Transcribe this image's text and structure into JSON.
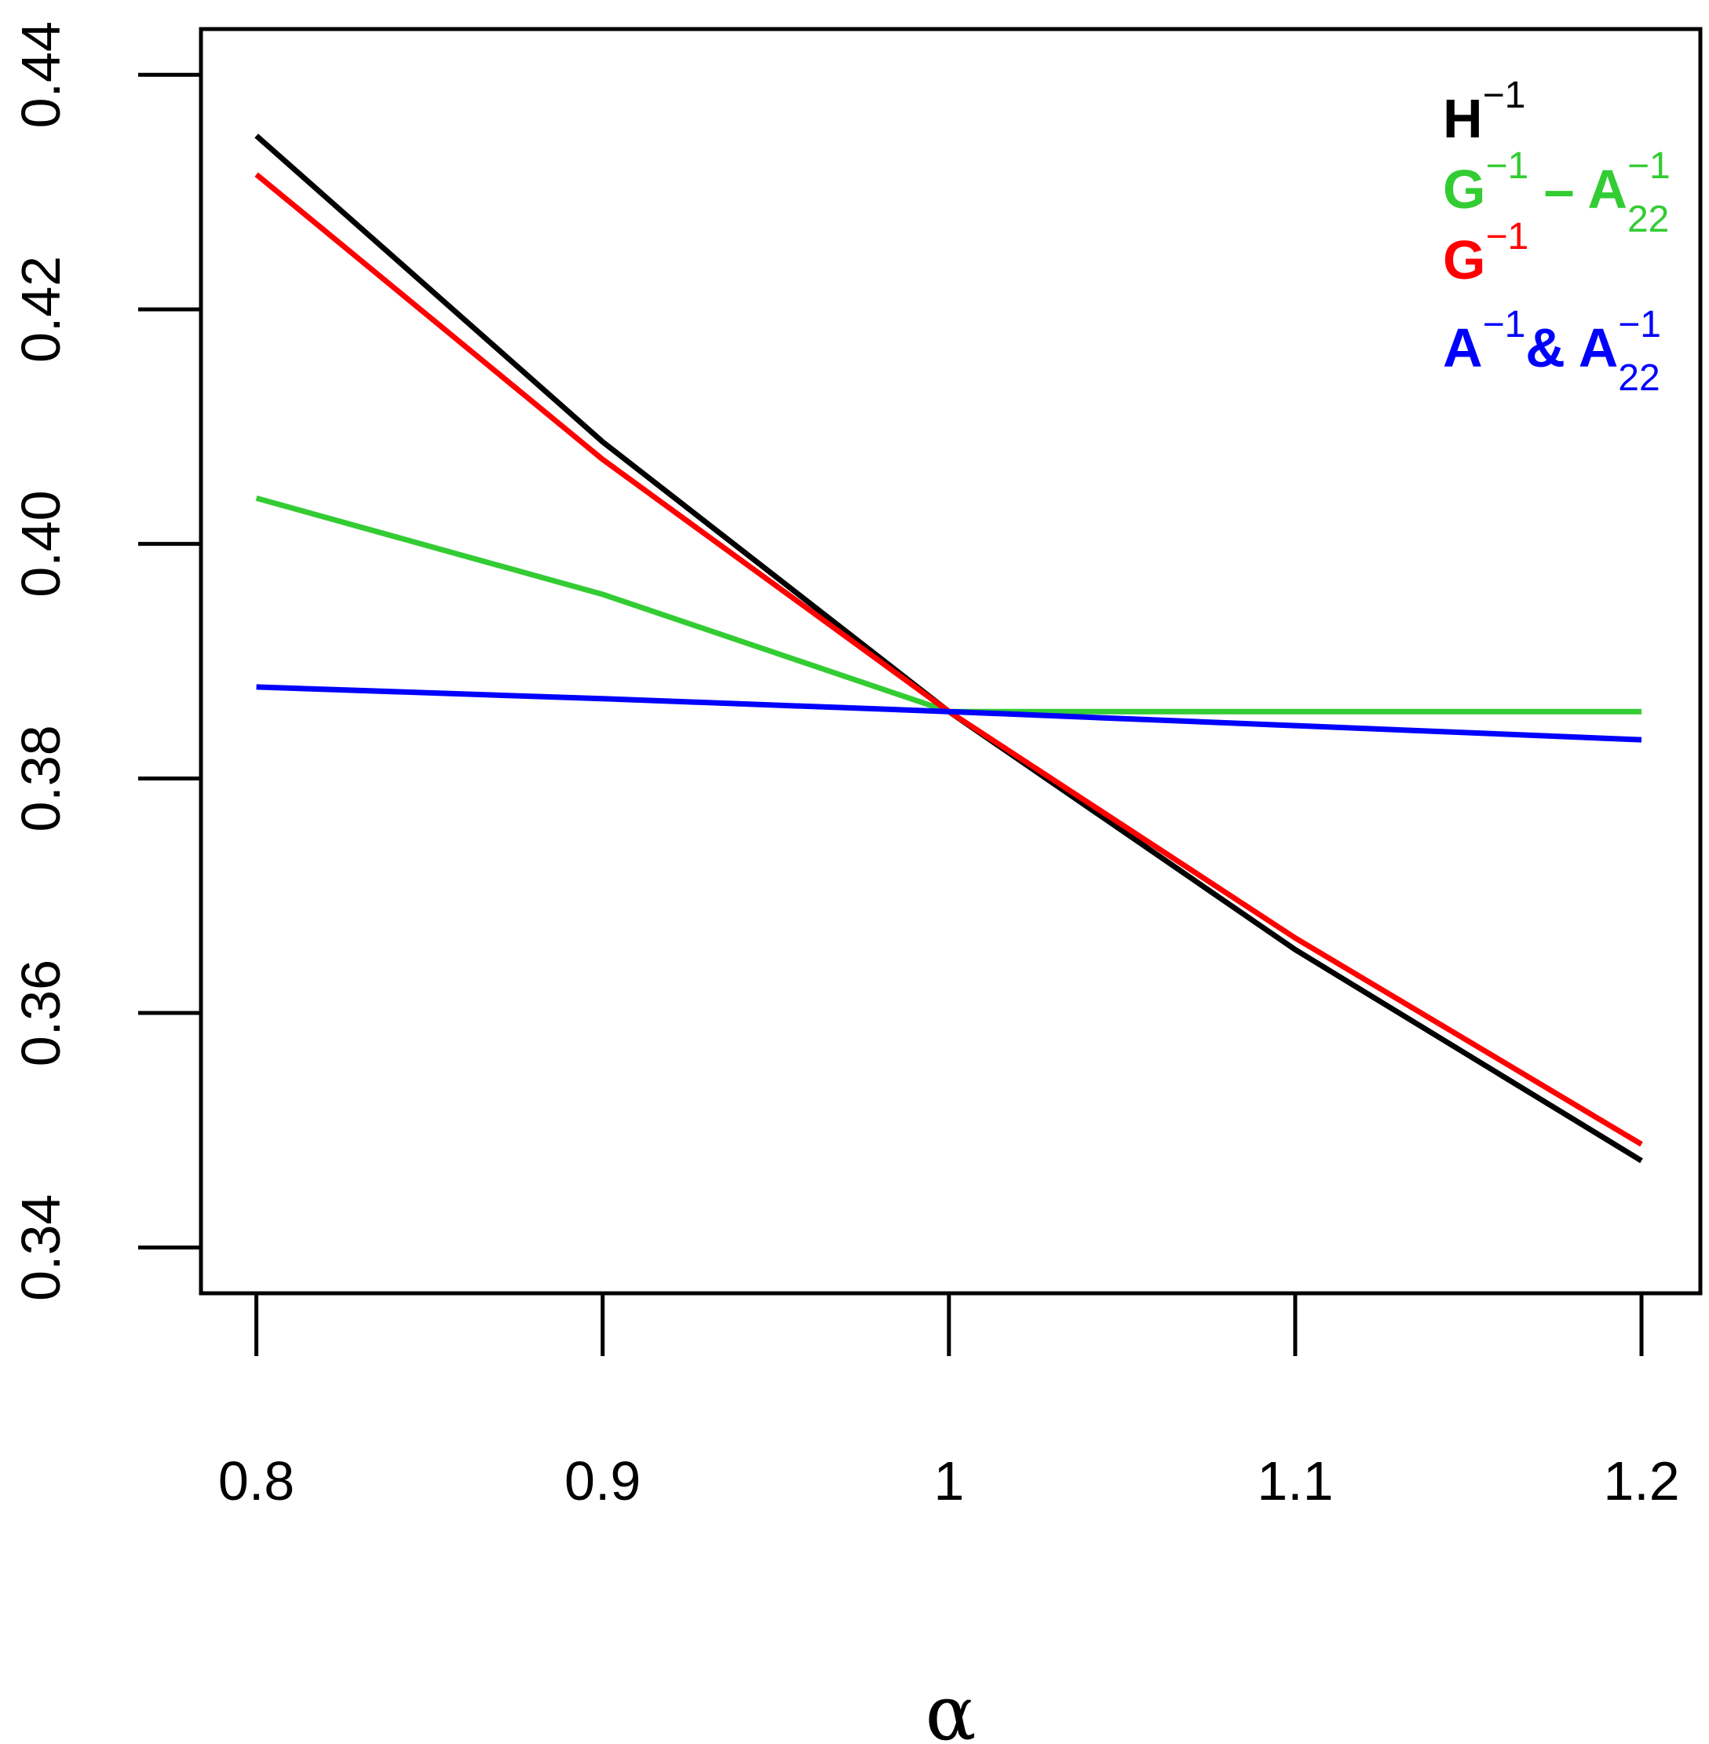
{
  "chart_data": {
    "type": "line",
    "title": "",
    "xlabel": "α",
    "ylabel": "",
    "x": [
      0.8,
      0.9,
      1.0,
      1.1,
      1.2
    ],
    "xlim": [
      0.784,
      1.217
    ],
    "ylim": [
      0.3361,
      0.4439
    ],
    "x_ticks": [
      0.8,
      0.9,
      1.0,
      1.1,
      1.2
    ],
    "x_tick_labels": [
      "0.8",
      "0.9",
      "1",
      "1.1",
      "1.2"
    ],
    "y_ticks": [
      0.34,
      0.36,
      0.38,
      0.4,
      0.42,
      0.44
    ],
    "y_tick_labels": [
      "0.34",
      "0.36",
      "0.38",
      "0.40",
      "0.42",
      "0.44"
    ],
    "grid": false,
    "legend_position": "top-right",
    "series": [
      {
        "name": "H^-1",
        "legend": {
          "base": "H",
          "sup1": "−1"
        },
        "color": "#000000",
        "values": [
          0.4348,
          0.4087,
          0.3857,
          0.3654,
          0.3474
        ]
      },
      {
        "name": "G^-1 - A22^-1",
        "legend": {
          "base": "G",
          "sup1": "−1",
          "mid": " – ",
          "base2": "A",
          "sup2": "−1",
          "sub2": "22"
        },
        "color": "#33cc33",
        "values": [
          0.4039,
          0.3957,
          0.3857,
          0.3857,
          0.3857
        ]
      },
      {
        "name": "G^-1",
        "legend": {
          "base": "G",
          "sup1": "−1"
        },
        "color": "#ff0000",
        "values": [
          0.4315,
          0.4072,
          0.3857,
          0.3664,
          0.3488
        ]
      },
      {
        "name": "A^-1 & A22^-1",
        "legend": {
          "base": "A",
          "sup1": "−1",
          "mid": "& ",
          "base2": "A",
          "sup2": "−1",
          "sub2": "22"
        },
        "color": "#0000ff",
        "values": [
          0.3878,
          0.3868,
          0.3857,
          0.3845,
          0.3833
        ]
      }
    ]
  }
}
